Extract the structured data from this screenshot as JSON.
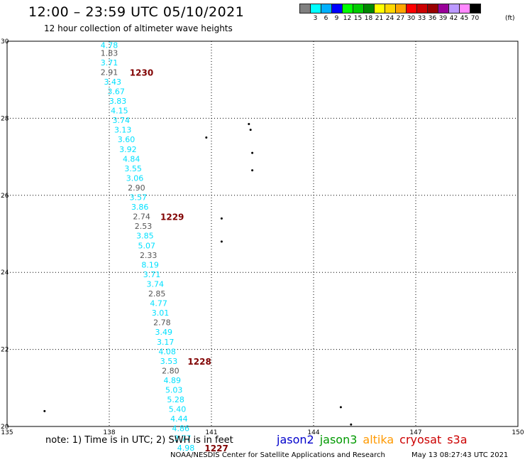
{
  "header": {
    "title": "12:00 – 23:59 UTC 05/10/2021",
    "subtitle": "12 hour collection of altimeter wave heights"
  },
  "legend": {
    "unit": "(ft)",
    "bins": [
      {
        "label": "",
        "color": "#808080"
      },
      {
        "label": "3",
        "color": "#00ffff"
      },
      {
        "label": "6",
        "color": "#00b0ff"
      },
      {
        "label": "9",
        "color": "#0000ff"
      },
      {
        "label": "12",
        "color": "#00ff00"
      },
      {
        "label": "15",
        "color": "#00cc00"
      },
      {
        "label": "18",
        "color": "#008800"
      },
      {
        "label": "21",
        "color": "#ffff00"
      },
      {
        "label": "24",
        "color": "#ffd700"
      },
      {
        "label": "27",
        "color": "#ffa500"
      },
      {
        "label": "30",
        "color": "#ff0000"
      },
      {
        "label": "33",
        "color": "#cc0000"
      },
      {
        "label": "36",
        "color": "#990000"
      },
      {
        "label": "39",
        "color": "#990099"
      },
      {
        "label": "42",
        "color": "#bb99ff"
      },
      {
        "label": "45",
        "color": "#ff88ff"
      },
      {
        "label": "70",
        "color": "#000000"
      }
    ]
  },
  "map": {
    "lon_ticks": [
      "135",
      "138",
      "141",
      "144",
      "147",
      "150"
    ],
    "lat_ticks": [
      "20",
      "22",
      "24",
      "26",
      "28",
      "30"
    ],
    "lon_range": [
      135,
      150
    ],
    "lat_range": [
      20,
      30
    ]
  },
  "track": {
    "label_color": "#00e0ff",
    "low_color": "#555555",
    "points": [
      {
        "lon": 138.0,
        "lat": 29.9,
        "value": "4.78"
      },
      {
        "lon": 138.0,
        "lat": 29.7,
        "value": "1.83"
      },
      {
        "lon": 138.0,
        "lat": 29.45,
        "value": "3.71"
      },
      {
        "lon": 138.0,
        "lat": 29.2,
        "value": "2.91"
      },
      {
        "lon": 138.1,
        "lat": 28.95,
        "value": "3.43"
      },
      {
        "lon": 138.2,
        "lat": 28.7,
        "value": "3.67"
      },
      {
        "lon": 138.25,
        "lat": 28.45,
        "value": "3.83"
      },
      {
        "lon": 138.3,
        "lat": 28.2,
        "value": "4.15"
      },
      {
        "lon": 138.35,
        "lat": 27.95,
        "value": "3.74"
      },
      {
        "lon": 138.4,
        "lat": 27.7,
        "value": "3.13"
      },
      {
        "lon": 138.5,
        "lat": 27.45,
        "value": "3.60"
      },
      {
        "lon": 138.55,
        "lat": 27.2,
        "value": "3.92"
      },
      {
        "lon": 138.65,
        "lat": 26.95,
        "value": "4.84"
      },
      {
        "lon": 138.7,
        "lat": 26.7,
        "value": "3.55"
      },
      {
        "lon": 138.75,
        "lat": 26.45,
        "value": "3.06"
      },
      {
        "lon": 138.8,
        "lat": 26.2,
        "value": "2.90"
      },
      {
        "lon": 138.85,
        "lat": 25.95,
        "value": "3.57"
      },
      {
        "lon": 138.9,
        "lat": 25.7,
        "value": "3.86"
      },
      {
        "lon": 138.95,
        "lat": 25.45,
        "value": "2.74"
      },
      {
        "lon": 139.0,
        "lat": 25.2,
        "value": "2.53"
      },
      {
        "lon": 139.05,
        "lat": 24.95,
        "value": "3.85"
      },
      {
        "lon": 139.1,
        "lat": 24.7,
        "value": "5.07"
      },
      {
        "lon": 139.15,
        "lat": 24.45,
        "value": "2.33"
      },
      {
        "lon": 139.2,
        "lat": 24.2,
        "value": "8.19"
      },
      {
        "lon": 139.25,
        "lat": 23.95,
        "value": "3.71"
      },
      {
        "lon": 139.35,
        "lat": 23.7,
        "value": "3.74"
      },
      {
        "lon": 139.4,
        "lat": 23.45,
        "value": "2.85"
      },
      {
        "lon": 139.45,
        "lat": 23.2,
        "value": "4.77"
      },
      {
        "lon": 139.5,
        "lat": 22.95,
        "value": "3.01"
      },
      {
        "lon": 139.55,
        "lat": 22.7,
        "value": "2.78"
      },
      {
        "lon": 139.6,
        "lat": 22.45,
        "value": "3.49"
      },
      {
        "lon": 139.65,
        "lat": 22.2,
        "value": "3.17"
      },
      {
        "lon": 139.7,
        "lat": 21.95,
        "value": "4.08"
      },
      {
        "lon": 139.75,
        "lat": 21.7,
        "value": "3.53"
      },
      {
        "lon": 139.8,
        "lat": 21.45,
        "value": "2.80"
      },
      {
        "lon": 139.85,
        "lat": 21.2,
        "value": "4.89"
      },
      {
        "lon": 139.9,
        "lat": 20.95,
        "value": "5.03"
      },
      {
        "lon": 139.95,
        "lat": 20.7,
        "value": "5.28"
      },
      {
        "lon": 140.0,
        "lat": 20.45,
        "value": "5.40"
      },
      {
        "lon": 140.05,
        "lat": 20.2,
        "value": "4.44"
      },
      {
        "lon": 140.1,
        "lat": 19.95,
        "value": "4.86"
      },
      {
        "lon": 140.15,
        "lat": 19.7,
        "value": "3.77"
      },
      {
        "lon": 140.25,
        "lat": 19.45,
        "value": "4.98"
      }
    ],
    "times": [
      {
        "lon": 138.6,
        "lat": 29.2,
        "text": "1230"
      },
      {
        "lon": 139.5,
        "lat": 25.45,
        "text": "1229"
      },
      {
        "lon": 140.3,
        "lat": 21.7,
        "text": "1228"
      },
      {
        "lon": 140.8,
        "lat": 19.45,
        "text": "1227"
      }
    ],
    "time_color": "#800000"
  },
  "islands": [
    {
      "lon": 140.85,
      "lat": 27.5
    },
    {
      "lon": 142.1,
      "lat": 27.85
    },
    {
      "lon": 142.15,
      "lat": 27.7
    },
    {
      "lon": 142.2,
      "lat": 27.1
    },
    {
      "lon": 142.2,
      "lat": 26.65
    },
    {
      "lon": 141.3,
      "lat": 25.4
    },
    {
      "lon": 141.3,
      "lat": 24.8
    },
    {
      "lon": 136.1,
      "lat": 20.4
    },
    {
      "lon": 144.8,
      "lat": 20.5
    },
    {
      "lon": 145.1,
      "lat": 20.05
    }
  ],
  "footer": {
    "notes": "note:  1) Time is in UTC; 2) SWH is in feet",
    "satellites": [
      {
        "name": "jason2",
        "color": "#0000cc"
      },
      {
        "name": "jason3",
        "color": "#009900"
      },
      {
        "name": "altika",
        "color": "#ff9900"
      },
      {
        "name": "cryosat",
        "color": "#cc0000"
      },
      {
        "name": "s3a",
        "color": "#cc0000"
      }
    ],
    "credit": "NOAA/NESDIS Center for Satellite Applications and Research",
    "timestamp": "May 13 08:27:43 UTC 2021"
  }
}
